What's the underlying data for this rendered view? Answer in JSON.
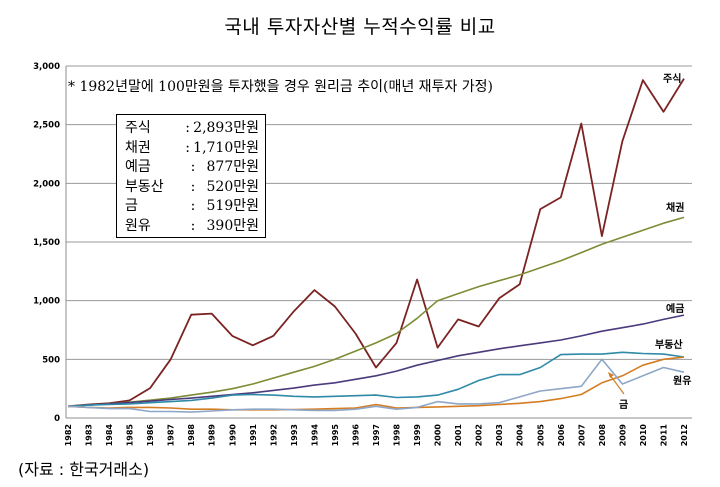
{
  "title": "국내 투자자산별 누적수익률 비교",
  "note": "* 1982년말에 100만원을 투자했을 경우 원리금 추이(매년 재투자 가정)",
  "summary": [
    {
      "name": "주식",
      "value": "2,893만원"
    },
    {
      "name": "채권",
      "value": "1,710만원"
    },
    {
      "name": "예금",
      "value": "877만원"
    },
    {
      "name": "부동산",
      "value": "520만원"
    },
    {
      "name": "금",
      "value": "519만원"
    },
    {
      "name": "원유",
      "value": "390만원"
    }
  ],
  "source": "(자료 : 한국거래소)",
  "chart_data": {
    "type": "line",
    "x": [
      "1982",
      "1983",
      "1984",
      "1985",
      "1986",
      "1987",
      "1988",
      "1989",
      "1990",
      "1991",
      "1992",
      "1993",
      "1994",
      "1995",
      "1996",
      "1997",
      "1998",
      "1999",
      "2000",
      "2001",
      "2002",
      "2003",
      "2004",
      "2005",
      "2006",
      "2007",
      "2008",
      "2009",
      "2010",
      "2011",
      "2012"
    ],
    "ylim": [
      0,
      3000
    ],
    "yticks": [
      0,
      500,
      1000,
      1500,
      2000,
      2500,
      3000
    ],
    "ytick_labels": [
      "0",
      "500",
      "1,000",
      "1,500",
      "2,000",
      "2,500",
      "3,000"
    ],
    "grid": true,
    "series": [
      {
        "name": "주식",
        "color": "#7b2323",
        "values": [
          100,
          115,
          125,
          150,
          255,
          500,
          880,
          890,
          700,
          620,
          700,
          910,
          1090,
          950,
          720,
          430,
          640,
          1180,
          600,
          840,
          780,
          1020,
          1140,
          1780,
          1880,
          2510,
          1550,
          2360,
          2880,
          2610,
          2893
        ]
      },
      {
        "name": "채권",
        "color": "#7d8c35",
        "values": [
          100,
          110,
          121,
          135,
          152,
          170,
          195,
          220,
          250,
          290,
          340,
          390,
          440,
          500,
          570,
          640,
          720,
          850,
          1000,
          1060,
          1120,
          1170,
          1220,
          1280,
          1340,
          1410,
          1480,
          1540,
          1600,
          1660,
          1710
        ]
      },
      {
        "name": "예금",
        "color": "#4b3a7c",
        "values": [
          100,
          110,
          120,
          132,
          144,
          158,
          170,
          185,
          200,
          215,
          235,
          255,
          280,
          300,
          330,
          360,
          400,
          450,
          490,
          530,
          560,
          590,
          615,
          640,
          665,
          700,
          740,
          770,
          800,
          840,
          877
        ]
      },
      {
        "name": "부동산",
        "color": "#2e8aa6",
        "values": [
          100,
          110,
          115,
          120,
          130,
          140,
          150,
          170,
          195,
          200,
          195,
          185,
          180,
          185,
          190,
          195,
          175,
          180,
          195,
          245,
          320,
          370,
          370,
          430,
          540,
          545,
          545,
          560,
          550,
          545,
          520
        ]
      },
      {
        "name": "금",
        "color": "#d57d22",
        "values": [
          100,
          90,
          85,
          90,
          90,
          85,
          75,
          75,
          70,
          70,
          70,
          72,
          75,
          80,
          85,
          115,
          85,
          90,
          95,
          100,
          105,
          115,
          125,
          140,
          165,
          200,
          300,
          360,
          450,
          500,
          519
        ]
      },
      {
        "name": "원유",
        "color": "#8ea6c7",
        "values": [
          100,
          90,
          80,
          80,
          55,
          55,
          50,
          60,
          70,
          75,
          75,
          70,
          65,
          65,
          75,
          100,
          75,
          90,
          140,
          120,
          120,
          130,
          180,
          230,
          250,
          270,
          500,
          290,
          360,
          430,
          390
        ]
      }
    ],
    "annotations": [
      "주식",
      "채권",
      "예금",
      "부동산",
      "원유",
      "금"
    ]
  }
}
